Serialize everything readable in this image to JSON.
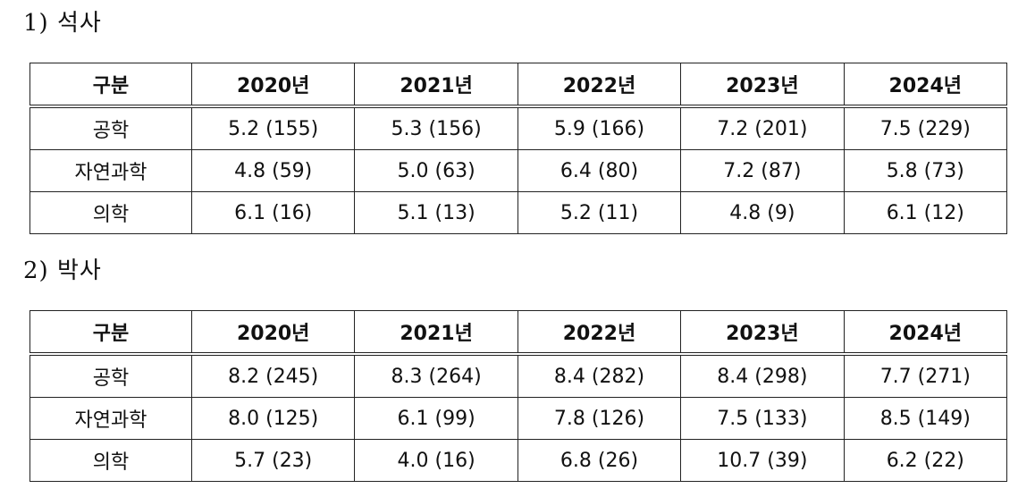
{
  "sections": [
    {
      "title": "1) 석사",
      "headers": [
        "구분",
        "2020년",
        "2021년",
        "2022년",
        "2023년",
        "2024년"
      ],
      "rows": [
        {
          "label": "공학",
          "values": [
            "5.2 (155)",
            "5.3 (156)",
            "5.9 (166)",
            "7.2 (201)",
            "7.5 (229)"
          ]
        },
        {
          "label": "자연과학",
          "values": [
            "4.8 (59)",
            "5.0 (63)",
            "6.4 (80)",
            "7.2 (87)",
            "5.8 (73)"
          ]
        },
        {
          "label": "의학",
          "values": [
            "6.1 (16)",
            "5.1 (13)",
            "5.2 (11)",
            "4.8 (9)",
            "6.1 (12)"
          ]
        }
      ]
    },
    {
      "title": "2) 박사",
      "headers": [
        "구분",
        "2020년",
        "2021년",
        "2022년",
        "2023년",
        "2024년"
      ],
      "rows": [
        {
          "label": "공학",
          "values": [
            "8.2 (245)",
            "8.3 (264)",
            "8.4 (282)",
            "8.4 (298)",
            "7.7 (271)"
          ]
        },
        {
          "label": "자연과학",
          "values": [
            "8.0 (125)",
            "6.1 (99)",
            "7.8 (126)",
            "7.5 (133)",
            "8.5 (149)"
          ]
        },
        {
          "label": "의학",
          "values": [
            "5.7 (23)",
            "4.0 (16)",
            "6.8 (26)",
            "10.7 (39)",
            "6.2 (22)"
          ]
        }
      ]
    }
  ]
}
